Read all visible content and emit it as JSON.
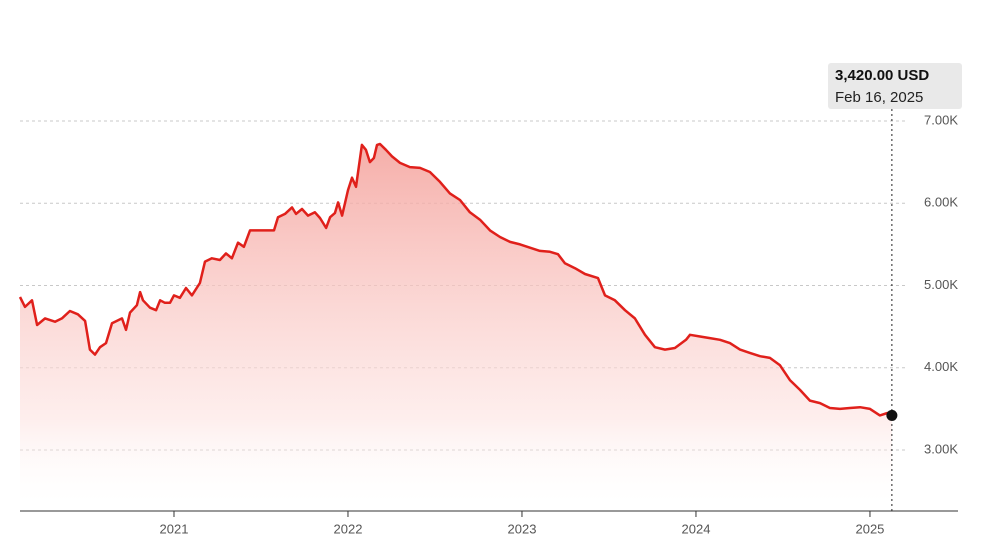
{
  "chart_data": {
    "type": "line",
    "x": [
      2020.115,
      2020.144,
      2020.184,
      2020.213,
      2020.259,
      2020.316,
      2020.356,
      2020.402,
      2020.448,
      2020.489,
      2020.517,
      2020.546,
      2020.575,
      2020.609,
      2020.644,
      2020.701,
      2020.724,
      2020.747,
      2020.787,
      2020.805,
      2020.822,
      2020.862,
      2020.897,
      2020.92,
      2020.948,
      2020.977,
      2021.0,
      2021.034,
      2021.069,
      2021.103,
      2021.149,
      2021.178,
      2021.218,
      2021.264,
      2021.299,
      2021.333,
      2021.368,
      2021.402,
      2021.437,
      2021.575,
      2021.598,
      2021.638,
      2021.678,
      2021.701,
      2021.736,
      2021.77,
      2021.81,
      2021.839,
      2021.874,
      2021.897,
      2021.925,
      2021.943,
      2021.966,
      2022.0,
      2022.023,
      2022.046,
      2022.08,
      2022.103,
      2022.126,
      2022.149,
      2022.167,
      2022.184,
      2022.218,
      2022.253,
      2022.299,
      2022.356,
      2022.414,
      2022.471,
      2022.529,
      2022.586,
      2022.644,
      2022.701,
      2022.759,
      2022.816,
      2022.874,
      2022.931,
      2022.989,
      2023.046,
      2023.103,
      2023.161,
      2023.207,
      2023.247,
      2023.305,
      2023.362,
      2023.437,
      2023.477,
      2023.534,
      2023.592,
      2023.649,
      2023.707,
      2023.764,
      2023.822,
      2023.879,
      2023.943,
      2023.966,
      2024.023,
      2024.08,
      2024.138,
      2024.195,
      2024.253,
      2024.31,
      2024.368,
      2024.425,
      2024.483,
      2024.54,
      2024.598,
      2024.655,
      2024.713,
      2024.77,
      2024.828,
      2024.885,
      2024.943,
      2025.0,
      2025.057,
      2025.1,
      2025.126
    ],
    "series": [
      {
        "color": "#e0201b",
        "values": [
          4860,
          4740,
          4820,
          4520,
          4600,
          4560,
          4600,
          4690,
          4650,
          4570,
          4220,
          4160,
          4250,
          4300,
          4540,
          4600,
          4460,
          4670,
          4760,
          4920,
          4820,
          4730,
          4700,
          4820,
          4790,
          4790,
          4880,
          4850,
          4970,
          4880,
          5030,
          5290,
          5330,
          5310,
          5390,
          5330,
          5520,
          5470,
          5670,
          5670,
          5830,
          5870,
          5950,
          5870,
          5930,
          5850,
          5890,
          5820,
          5700,
          5830,
          5880,
          6010,
          5850,
          6160,
          6310,
          6200,
          6710,
          6650,
          6500,
          6550,
          6710,
          6720,
          6650,
          6570,
          6490,
          6440,
          6430,
          6380,
          6260,
          6120,
          6040,
          5890,
          5800,
          5670,
          5590,
          5530,
          5500,
          5460,
          5420,
          5410,
          5380,
          5270,
          5210,
          5140,
          5090,
          4880,
          4820,
          4700,
          4600,
          4400,
          4250,
          4220,
          4240,
          4340,
          4400,
          4380,
          4360,
          4340,
          4300,
          4220,
          4180,
          4140,
          4120,
          4030,
          3850,
          3730,
          3600,
          3570,
          3510,
          3500,
          3510,
          3520,
          3500,
          3420,
          3450,
          3420
        ]
      }
    ],
    "xlim": [
      2020.115,
      2025.506
    ],
    "ylim": [
      2258,
      7000
    ],
    "xticks": [
      {
        "value": 2021,
        "label": "2021"
      },
      {
        "value": 2022,
        "label": "2022"
      },
      {
        "value": 2023,
        "label": "2023"
      },
      {
        "value": 2024,
        "label": "2024"
      },
      {
        "value": 2025,
        "label": "2025"
      }
    ],
    "yticks": [
      {
        "value": 3000,
        "label": "3.00K"
      },
      {
        "value": 4000,
        "label": "4.00K"
      },
      {
        "value": 5000,
        "label": "5.00K"
      },
      {
        "value": 6000,
        "label": "6.00K"
      },
      {
        "value": 7000,
        "label": "7.00K"
      }
    ],
    "grid": true,
    "annotation": {
      "x": 2025.126,
      "y": 3420,
      "label": "3,420.00 USD",
      "date": "Feb 16, 2025"
    }
  }
}
